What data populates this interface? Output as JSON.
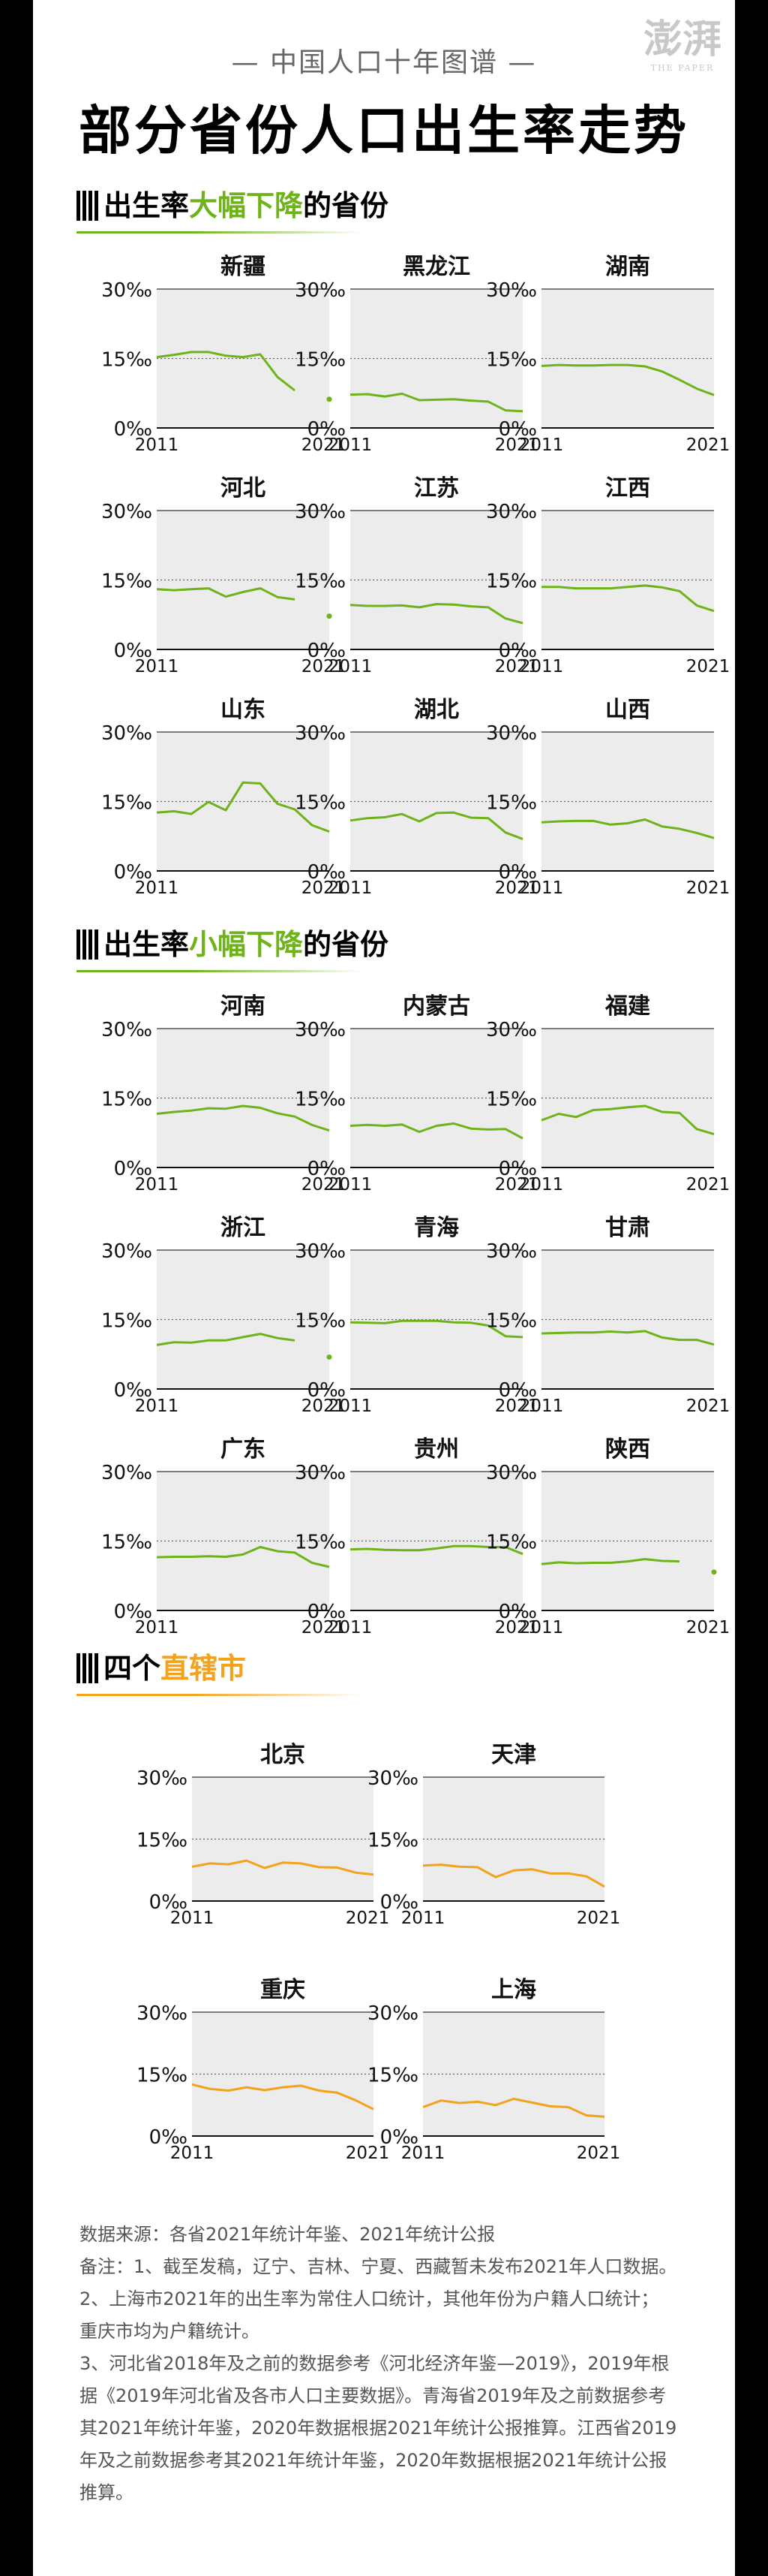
{
  "header": {
    "topline": "— 中国人口十年图谱 —",
    "title": "部分省份人口出生率走势",
    "logo_text": "澎湃",
    "logo_sub": "THE PAPER"
  },
  "colors": {
    "green": "#6fb31b",
    "orange": "#f2a21b",
    "plot_bg": "#ececec"
  },
  "sections": [
    {
      "pre": "出生率",
      "hl": "大幅下降",
      "post": "的省份"
    },
    {
      "pre": "出生率",
      "hl": "小幅下降",
      "post": "的省份"
    },
    {
      "pre": "四个",
      "hl": "直辖市",
      "post": ""
    }
  ],
  "chart_data": [
    {
      "type": "line",
      "title": "新疆",
      "x": [
        2011,
        2012,
        2013,
        2014,
        2015,
        2016,
        2017,
        2018,
        2019,
        2020,
        2021
      ],
      "values": [
        15.3,
        15.8,
        16.4,
        16.4,
        15.6,
        15.3,
        15.9,
        11.0,
        8.1,
        null,
        6.2
      ],
      "xlabel_start": "2011",
      "xlabel_end": "2021",
      "yticks": [
        "30‰",
        "15‰",
        "0‰"
      ],
      "ylim": [
        0,
        30
      ],
      "color": "#6fb31b"
    },
    {
      "type": "line",
      "title": "黑龙江",
      "x": [
        2011,
        2012,
        2013,
        2014,
        2015,
        2016,
        2017,
        2018,
        2019,
        2020,
        2021
      ],
      "values": [
        7.2,
        7.3,
        6.8,
        7.4,
        6.0,
        6.1,
        6.2,
        5.9,
        5.7,
        3.8,
        3.6
      ],
      "xlabel_start": "2011",
      "xlabel_end": "2021",
      "yticks": [
        "30‰",
        "15‰",
        "0‰"
      ],
      "ylim": [
        0,
        30
      ],
      "color": "#6fb31b"
    },
    {
      "type": "line",
      "title": "湖南",
      "x": [
        2011,
        2012,
        2013,
        2014,
        2015,
        2016,
        2017,
        2018,
        2019,
        2020,
        2021
      ],
      "values": [
        13.4,
        13.6,
        13.5,
        13.5,
        13.6,
        13.6,
        13.3,
        12.2,
        10.4,
        8.5,
        7.1
      ],
      "xlabel_start": "2011",
      "xlabel_end": "2021",
      "yticks": [
        "30‰",
        "15‰",
        "0‰"
      ],
      "ylim": [
        0,
        30
      ],
      "color": "#6fb31b"
    },
    {
      "type": "line",
      "title": "河北",
      "x": [
        2011,
        2012,
        2013,
        2014,
        2015,
        2016,
        2017,
        2018,
        2019,
        2020,
        2021
      ],
      "values": [
        13.0,
        12.8,
        13.0,
        13.2,
        11.4,
        12.4,
        13.2,
        11.3,
        10.8,
        null,
        7.2
      ],
      "xlabel_start": "2011",
      "xlabel_end": "2021",
      "yticks": [
        "30‰",
        "15‰",
        "0‰"
      ],
      "ylim": [
        0,
        30
      ],
      "color": "#6fb31b"
    },
    {
      "type": "line",
      "title": "江苏",
      "x": [
        2011,
        2012,
        2013,
        2014,
        2015,
        2016,
        2017,
        2018,
        2019,
        2020,
        2021
      ],
      "values": [
        9.6,
        9.4,
        9.4,
        9.5,
        9.1,
        9.8,
        9.7,
        9.3,
        9.1,
        6.7,
        5.7
      ],
      "xlabel_start": "2011",
      "xlabel_end": "2021",
      "yticks": [
        "30‰",
        "15‰",
        "0‰"
      ],
      "ylim": [
        0,
        30
      ],
      "color": "#6fb31b"
    },
    {
      "type": "line",
      "title": "江西",
      "x": [
        2011,
        2012,
        2013,
        2014,
        2015,
        2016,
        2017,
        2018,
        2019,
        2020,
        2021
      ],
      "values": [
        13.5,
        13.5,
        13.2,
        13.2,
        13.2,
        13.5,
        13.8,
        13.4,
        12.6,
        9.5,
        8.3
      ],
      "xlabel_start": "2011",
      "xlabel_end": "2021",
      "yticks": [
        "30‰",
        "15‰",
        "0‰"
      ],
      "ylim": [
        0,
        30
      ],
      "color": "#6fb31b"
    },
    {
      "type": "line",
      "title": "山东",
      "x": [
        2011,
        2012,
        2013,
        2014,
        2015,
        2016,
        2017,
        2018,
        2019,
        2020,
        2021
      ],
      "values": [
        12.6,
        12.9,
        12.3,
        14.9,
        13.1,
        19.1,
        18.9,
        14.5,
        13.3,
        9.9,
        8.5
      ],
      "xlabel_start": "2011",
      "xlabel_end": "2021",
      "yticks": [
        "30‰",
        "15‰",
        "0‰"
      ],
      "ylim": [
        0,
        30
      ],
      "color": "#6fb31b"
    },
    {
      "type": "line",
      "title": "湖北",
      "x": [
        2011,
        2012,
        2013,
        2014,
        2015,
        2016,
        2017,
        2018,
        2019,
        2020,
        2021
      ],
      "values": [
        10.9,
        11.4,
        11.6,
        12.3,
        10.7,
        12.5,
        12.6,
        11.5,
        11.4,
        8.3,
        6.9
      ],
      "xlabel_start": "2011",
      "xlabel_end": "2021",
      "yticks": [
        "30‰",
        "15‰",
        "0‰"
      ],
      "ylim": [
        0,
        30
      ],
      "color": "#6fb31b"
    },
    {
      "type": "line",
      "title": "山西",
      "x": [
        2011,
        2012,
        2013,
        2014,
        2015,
        2016,
        2017,
        2018,
        2019,
        2020,
        2021
      ],
      "values": [
        10.5,
        10.7,
        10.8,
        10.8,
        10.0,
        10.3,
        11.1,
        9.6,
        9.1,
        8.2,
        7.1
      ],
      "xlabel_start": "2011",
      "xlabel_end": "2021",
      "yticks": [
        "30‰",
        "15‰",
        "0‰"
      ],
      "ylim": [
        0,
        30
      ],
      "color": "#6fb31b"
    },
    {
      "type": "line",
      "title": "河南",
      "x": [
        2011,
        2012,
        2013,
        2014,
        2015,
        2016,
        2017,
        2018,
        2019,
        2020,
        2021
      ],
      "values": [
        11.6,
        12.0,
        12.3,
        12.8,
        12.7,
        13.3,
        12.9,
        11.7,
        11.0,
        9.2,
        8.0
      ],
      "xlabel_start": "2011",
      "xlabel_end": "2021",
      "yticks": [
        "30‰",
        "15‰",
        "0‰"
      ],
      "ylim": [
        0,
        30
      ],
      "color": "#6fb31b"
    },
    {
      "type": "line",
      "title": "内蒙古",
      "x": [
        2011,
        2012,
        2013,
        2014,
        2015,
        2016,
        2017,
        2018,
        2019,
        2020,
        2021
      ],
      "values": [
        9.0,
        9.2,
        9.0,
        9.3,
        7.7,
        9.0,
        9.5,
        8.4,
        8.2,
        8.3,
        6.3
      ],
      "xlabel_start": "2011",
      "xlabel_end": "2021",
      "yticks": [
        "30‰",
        "15‰",
        "0‰"
      ],
      "ylim": [
        0,
        30
      ],
      "color": "#6fb31b"
    },
    {
      "type": "line",
      "title": "福建",
      "x": [
        2011,
        2012,
        2013,
        2014,
        2015,
        2016,
        2017,
        2018,
        2019,
        2020,
        2021
      ],
      "values": [
        10.2,
        11.6,
        10.9,
        12.4,
        12.6,
        13.0,
        13.3,
        12.0,
        11.8,
        8.3,
        7.2
      ],
      "xlabel_start": "2011",
      "xlabel_end": "2021",
      "yticks": [
        "30‰",
        "15‰",
        "0‰"
      ],
      "ylim": [
        0,
        30
      ],
      "color": "#6fb31b"
    },
    {
      "type": "line",
      "title": "浙江",
      "x": [
        2011,
        2012,
        2013,
        2014,
        2015,
        2016,
        2017,
        2018,
        2019,
        2020,
        2021
      ],
      "values": [
        9.5,
        10.1,
        10.0,
        10.5,
        10.5,
        11.2,
        11.9,
        11.0,
        10.5,
        null,
        6.9
      ],
      "xlabel_start": "2011",
      "xlabel_end": "2021",
      "yticks": [
        "30‰",
        "15‰",
        "0‰"
      ],
      "ylim": [
        0,
        30
      ],
      "color": "#6fb31b"
    },
    {
      "type": "line",
      "title": "青海",
      "x": [
        2011,
        2012,
        2013,
        2014,
        2015,
        2016,
        2017,
        2018,
        2019,
        2020,
        2021
      ],
      "values": [
        14.4,
        14.3,
        14.2,
        14.7,
        14.7,
        14.7,
        14.4,
        14.3,
        13.7,
        11.4,
        11.2
      ],
      "xlabel_start": "2011",
      "xlabel_end": "2021",
      "yticks": [
        "30‰",
        "15‰",
        "0‰"
      ],
      "ylim": [
        0,
        30
      ],
      "color": "#6fb31b"
    },
    {
      "type": "line",
      "title": "甘肃",
      "x": [
        2011,
        2012,
        2013,
        2014,
        2015,
        2016,
        2017,
        2018,
        2019,
        2020,
        2021
      ],
      "values": [
        12.0,
        12.1,
        12.2,
        12.2,
        12.4,
        12.2,
        12.5,
        11.1,
        10.6,
        10.6,
        9.6
      ],
      "xlabel_start": "2011",
      "xlabel_end": "2021",
      "yticks": [
        "30‰",
        "15‰",
        "0‰"
      ],
      "ylim": [
        0,
        30
      ],
      "color": "#6fb31b"
    },
    {
      "type": "line",
      "title": "广东",
      "x": [
        2011,
        2012,
        2013,
        2014,
        2015,
        2016,
        2017,
        2018,
        2019,
        2020,
        2021
      ],
      "values": [
        11.5,
        11.6,
        11.6,
        11.7,
        11.6,
        12.1,
        13.7,
        12.8,
        12.5,
        10.3,
        9.4
      ],
      "xlabel_start": "2011",
      "xlabel_end": "2021",
      "yticks": [
        "30‰",
        "15‰",
        "0‰"
      ],
      "ylim": [
        0,
        30
      ],
      "color": "#6fb31b"
    },
    {
      "type": "line",
      "title": "贵州",
      "x": [
        2011,
        2012,
        2013,
        2014,
        2015,
        2016,
        2017,
        2018,
        2019,
        2020,
        2021
      ],
      "values": [
        13.2,
        13.3,
        13.1,
        13.0,
        13.0,
        13.4,
        13.9,
        13.9,
        13.7,
        13.7,
        12.2
      ],
      "xlabel_start": "2011",
      "xlabel_end": "2021",
      "yticks": [
        "30‰",
        "15‰",
        "0‰"
      ],
      "ylim": [
        0,
        30
      ],
      "color": "#6fb31b"
    },
    {
      "type": "line",
      "title": "陕西",
      "x": [
        2011,
        2012,
        2013,
        2014,
        2015,
        2016,
        2017,
        2018,
        2019,
        2020,
        2021
      ],
      "values": [
        10.0,
        10.4,
        10.2,
        10.3,
        10.3,
        10.6,
        11.1,
        10.7,
        10.6,
        null,
        8.3
      ],
      "xlabel_start": "2011",
      "xlabel_end": "2021",
      "yticks": [
        "30‰",
        "15‰",
        "0‰"
      ],
      "ylim": [
        0,
        30
      ],
      "color": "#6fb31b"
    },
    {
      "type": "line",
      "title": "北京",
      "x": [
        2011,
        2012,
        2013,
        2014,
        2015,
        2016,
        2017,
        2018,
        2019,
        2020,
        2021
      ],
      "values": [
        8.3,
        9.1,
        8.9,
        9.8,
        8.0,
        9.3,
        9.1,
        8.2,
        8.1,
        6.9,
        6.4
      ],
      "xlabel_start": "2011",
      "xlabel_end": "2021",
      "yticks": [
        "30‰",
        "15‰",
        "0‰"
      ],
      "ylim": [
        0,
        30
      ],
      "color": "#f2a21b"
    },
    {
      "type": "line",
      "title": "天津",
      "x": [
        2011,
        2012,
        2013,
        2014,
        2015,
        2016,
        2017,
        2018,
        2019,
        2020,
        2021
      ],
      "values": [
        8.6,
        8.8,
        8.3,
        8.2,
        5.8,
        7.4,
        7.7,
        6.7,
        6.7,
        5.99,
        3.5
      ],
      "xlabel_start": "2011",
      "xlabel_end": "2021",
      "yticks": [
        "30‰",
        "15‰",
        "0‰"
      ],
      "ylim": [
        0,
        30
      ],
      "color": "#f2a21b"
    },
    {
      "type": "line",
      "title": "重庆",
      "x": [
        2011,
        2012,
        2013,
        2014,
        2015,
        2016,
        2017,
        2018,
        2019,
        2020,
        2021
      ],
      "values": [
        12.5,
        11.4,
        11.0,
        11.8,
        11.1,
        11.8,
        12.2,
        11.0,
        10.5,
        8.7,
        6.5
      ],
      "xlabel_start": "2011",
      "xlabel_end": "2021",
      "yticks": [
        "30‰",
        "15‰",
        "0‰"
      ],
      "ylim": [
        0,
        30
      ],
      "color": "#f2a21b"
    },
    {
      "type": "line",
      "title": "上海",
      "x": [
        2011,
        2012,
        2013,
        2014,
        2015,
        2016,
        2017,
        2018,
        2019,
        2020,
        2021
      ],
      "values": [
        7.0,
        8.6,
        8.0,
        8.3,
        7.5,
        9.0,
        8.1,
        7.2,
        7.0,
        5.0,
        4.7
      ],
      "xlabel_start": "2011",
      "xlabel_end": "2021",
      "yticks": [
        "30‰",
        "15‰",
        "0‰"
      ],
      "ylim": [
        0,
        30
      ],
      "color": "#f2a21b"
    }
  ],
  "notes": [
    "数据来源：各省2021年统计年鉴、2021年统计公报",
    "备注：1、截至发稿，辽宁、吉林、宁夏、西藏暂未发布2021年人口数据。",
    "2、上海市2021年的出生率为常住人口统计，其他年份为户籍人口统计；",
    "重庆市均为户籍统计。",
    "3、河北省2018年及之前的数据参考《河北经济年鉴—2019》，2019年根",
    "据《2019年河北省及各市人口主要数据》。青海省2019年及之前数据参考",
    "其2021年统计年鉴，2020年数据根据2021年统计公报推算。江西省2019",
    "年及之前数据参考其2021年统计年鉴，2020年数据根据2021年统计公报",
    "推算。"
  ]
}
